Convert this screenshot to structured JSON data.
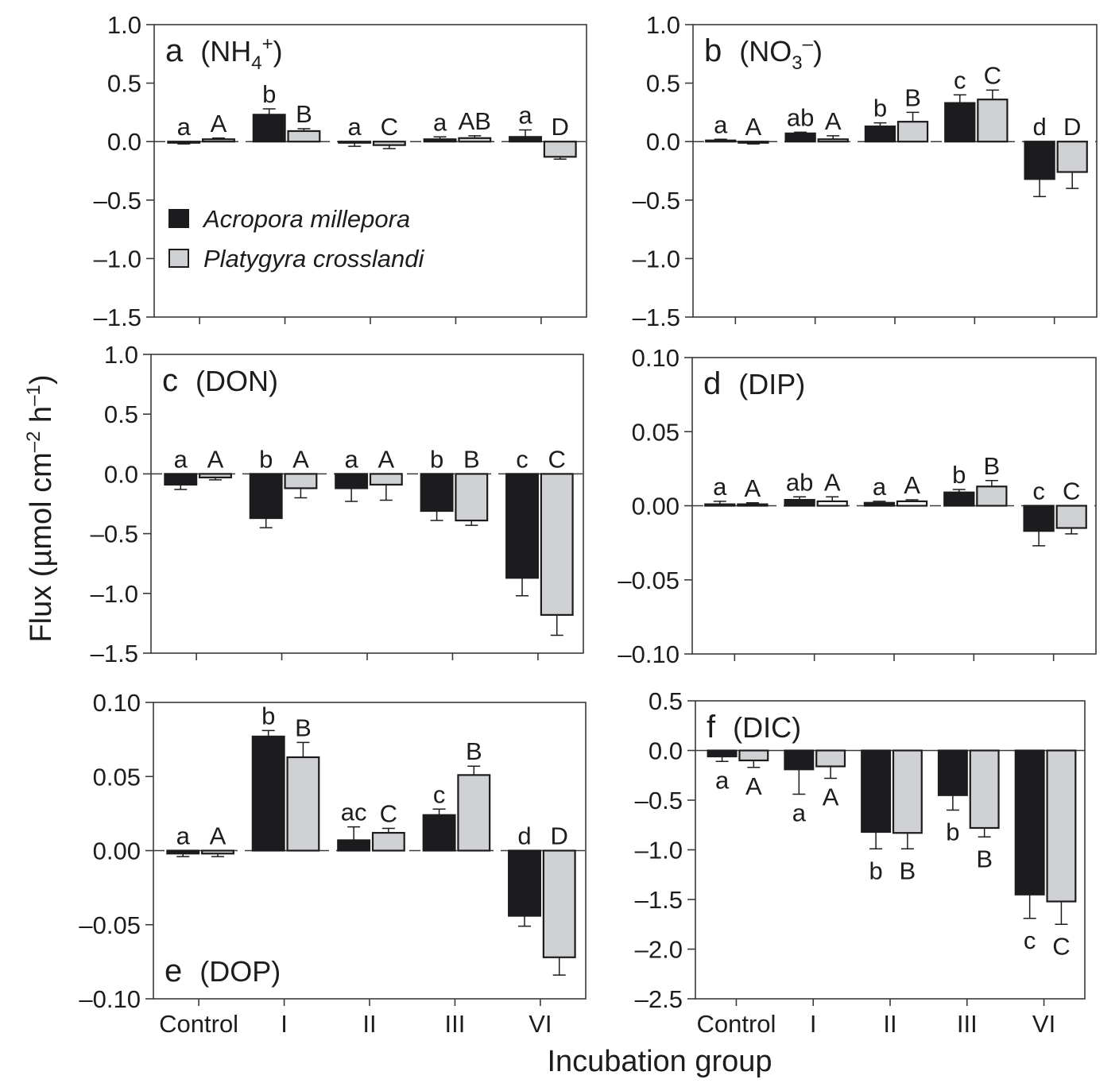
{
  "figure": {
    "y_axis_title": "Flux (µmol cm⁻² h⁻¹)",
    "y_axis_title_parts": {
      "base": "Flux (µmol cm",
      "sup1": "–2",
      "mid": " h",
      "sup2": "–1",
      "end": ")"
    },
    "x_axis_title": "Incubation group",
    "legend": [
      {
        "name": "Acropora millepora",
        "color": "#1c1c1e"
      },
      {
        "name": "Platygyra crosslandi",
        "color": "#d0d1d3"
      }
    ]
  },
  "chart_data": [
    {
      "type": "bar",
      "panel": "a",
      "title": "(NH4+)",
      "title_parts": {
        "letter": "a",
        "open": "(NH",
        "sub": "4",
        "sup": "+",
        "close": ")"
      },
      "categories": [
        "Control",
        "I",
        "II",
        "III",
        "VI"
      ],
      "ylim": [
        -1.5,
        1.0
      ],
      "yticks": [
        "1.0",
        "0.5",
        "0.0",
        "–0.5",
        "–1.0",
        "–1.5"
      ],
      "ytick_values": [
        1.0,
        0.5,
        0.0,
        -0.5,
        -1.0,
        -1.5
      ],
      "zero_line": "dashed",
      "legend": "middle-left",
      "series": [
        {
          "name": "Acropora millepora",
          "values": [
            -0.01,
            0.23,
            -0.01,
            0.02,
            0.04
          ],
          "errors": [
            0.01,
            0.05,
            0.03,
            0.02,
            0.06
          ],
          "labels": [
            "a",
            "b",
            "a",
            "a",
            "a"
          ]
        },
        {
          "name": "Platygyra crosslandi",
          "values": [
            0.02,
            0.09,
            -0.03,
            0.03,
            -0.13
          ],
          "errors": [
            0.01,
            0.02,
            0.03,
            0.02,
            0.02
          ],
          "labels": [
            "A",
            "B",
            "C",
            "AB",
            "D"
          ]
        }
      ],
      "label_position": "above"
    },
    {
      "type": "bar",
      "panel": "b",
      "title": "(NO3−)",
      "title_parts": {
        "letter": "b",
        "open": "(NO",
        "sub": "3",
        "sup": "–",
        "close": ")"
      },
      "categories": [
        "Control",
        "I",
        "II",
        "III",
        "VI"
      ],
      "ylim": [
        -1.5,
        1.0
      ],
      "yticks": [
        "1.0",
        "0.5",
        "0.0",
        "–0.5",
        "–1.0",
        "–1.5"
      ],
      "ytick_values": [
        1.0,
        0.5,
        0.0,
        -0.5,
        -1.0,
        -1.5
      ],
      "zero_line": "dashed",
      "series": [
        {
          "name": "Acropora millepora",
          "values": [
            0.01,
            0.07,
            0.13,
            0.33,
            -0.32
          ],
          "errors": [
            0.01,
            0.01,
            0.03,
            0.07,
            0.15
          ],
          "labels": [
            "a",
            "ab",
            "b",
            "c",
            "d"
          ]
        },
        {
          "name": "Platygyra crosslandi",
          "values": [
            -0.01,
            0.02,
            0.17,
            0.36,
            -0.26
          ],
          "errors": [
            0.01,
            0.03,
            0.08,
            0.08,
            0.14
          ],
          "labels": [
            "A",
            "A",
            "B",
            "C",
            "D"
          ]
        }
      ],
      "label_position": "above"
    },
    {
      "type": "bar",
      "panel": "c",
      "title": "(DON)",
      "title_parts": {
        "letter": "c",
        "open": "(DON)",
        "sub": "",
        "sup": "",
        "close": ""
      },
      "categories": [
        "Control",
        "I",
        "II",
        "III",
        "VI"
      ],
      "ylim": [
        -1.5,
        1.0
      ],
      "yticks": [
        "1.0",
        "0.5",
        "0.0",
        "–0.5",
        "–1.0",
        "–1.5"
      ],
      "ytick_values": [
        1.0,
        0.5,
        0.0,
        -0.5,
        -1.0,
        -1.5
      ],
      "zero_line": "dashed",
      "series": [
        {
          "name": "Acropora millepora",
          "values": [
            -0.09,
            -0.37,
            -0.12,
            -0.31,
            -0.87
          ],
          "errors": [
            0.04,
            0.08,
            0.11,
            0.08,
            0.15
          ],
          "labels": [
            "a",
            "b",
            "a",
            "b",
            "c"
          ]
        },
        {
          "name": "Platygyra crosslandi",
          "values": [
            -0.03,
            -0.12,
            -0.09,
            -0.39,
            -1.18
          ],
          "errors": [
            0.02,
            0.08,
            0.13,
            0.04,
            0.17
          ],
          "labels": [
            "A",
            "A",
            "A",
            "B",
            "C"
          ]
        }
      ],
      "label_position": "above_zero"
    },
    {
      "type": "bar",
      "panel": "d",
      "title": "(DIP)",
      "title_parts": {
        "letter": "d",
        "open": "(DIP)",
        "sub": "",
        "sup": "",
        "close": ""
      },
      "categories": [
        "Control",
        "I",
        "II",
        "III",
        "VI"
      ],
      "ylim": [
        -0.1,
        0.1
      ],
      "yticks": [
        "0.10",
        "0.05",
        "0.00",
        "–0.05",
        "–0.10"
      ],
      "ytick_values": [
        0.1,
        0.05,
        0.0,
        -0.05,
        -0.1
      ],
      "zero_line": "dashed",
      "series": [
        {
          "name": "Acropora millepora",
          "values": [
            0.001,
            0.004,
            0.002,
            0.009,
            -0.017
          ],
          "errors": [
            0.002,
            0.002,
            0.001,
            0.002,
            0.01
          ],
          "labels": [
            "a",
            "ab",
            "a",
            "b",
            "c"
          ]
        },
        {
          "name": "Platygyra crosslandi",
          "values": [
            0.001,
            0.003,
            0.003,
            0.013,
            -0.015
          ],
          "errors": [
            0.001,
            0.003,
            0.001,
            0.004,
            0.004
          ],
          "labels": [
            "A",
            "A",
            "A",
            "B",
            "C"
          ],
          "fill_overrides": [
            "#d0d1d3",
            "#ffffff",
            "#ffffff",
            "#d0d1d3",
            "#d0d1d3"
          ]
        }
      ],
      "label_position": "above"
    },
    {
      "type": "bar",
      "panel": "e",
      "title": "(DOP)",
      "title_parts": {
        "letter": "e",
        "open": "(DOP)",
        "sub": "",
        "sup": "",
        "close": ""
      },
      "categories": [
        "Control",
        "I",
        "II",
        "III",
        "VI"
      ],
      "ylim": [
        -0.1,
        0.1
      ],
      "yticks": [
        "0.10",
        "0.05",
        "0.00",
        "–0.05",
        "–0.10"
      ],
      "ytick_values": [
        0.1,
        0.05,
        0.0,
        -0.05,
        -0.1
      ],
      "zero_line": "dashed",
      "title_position": "bottom-left",
      "series": [
        {
          "name": "Acropora millepora",
          "values": [
            -0.002,
            0.077,
            0.007,
            0.024,
            -0.044
          ],
          "errors": [
            0.002,
            0.004,
            0.009,
            0.004,
            0.007
          ],
          "labels": [
            "a",
            "b",
            "ac",
            "c",
            "d"
          ]
        },
        {
          "name": "Platygyra crosslandi",
          "values": [
            -0.002,
            0.063,
            0.012,
            0.051,
            -0.072
          ],
          "errors": [
            0.002,
            0.01,
            0.003,
            0.006,
            0.012
          ],
          "labels": [
            "A",
            "B",
            "C",
            "B",
            "D"
          ]
        }
      ],
      "label_position": "above"
    },
    {
      "type": "bar",
      "panel": "f",
      "title": "(DIC)",
      "title_parts": {
        "letter": "f",
        "open": "(DIC)",
        "sub": "",
        "sup": "",
        "close": ""
      },
      "categories": [
        "Control",
        "I",
        "II",
        "III",
        "VI"
      ],
      "ylim": [
        -2.5,
        0.5
      ],
      "yticks": [
        "0.5",
        "0.0",
        "–0.5",
        "–1.0",
        "–1.5",
        "–2.0",
        "–2.5"
      ],
      "ytick_values": [
        0.5,
        0.0,
        -0.5,
        -1.0,
        -1.5,
        -2.0,
        -2.5
      ],
      "zero_line": "solid",
      "series": [
        {
          "name": "Acropora millepora",
          "values": [
            -0.06,
            -0.19,
            -0.82,
            -0.45,
            -1.45
          ],
          "errors": [
            0.05,
            0.25,
            0.17,
            0.15,
            0.24
          ],
          "labels": [
            "a",
            "a",
            "b",
            "b",
            "c"
          ]
        },
        {
          "name": "Platygyra crosslandi",
          "values": [
            -0.1,
            -0.16,
            -0.83,
            -0.78,
            -1.52
          ],
          "errors": [
            0.07,
            0.12,
            0.16,
            0.09,
            0.23
          ],
          "labels": [
            "A",
            "A",
            "B",
            "B",
            "C"
          ]
        }
      ],
      "label_position": "below"
    }
  ]
}
